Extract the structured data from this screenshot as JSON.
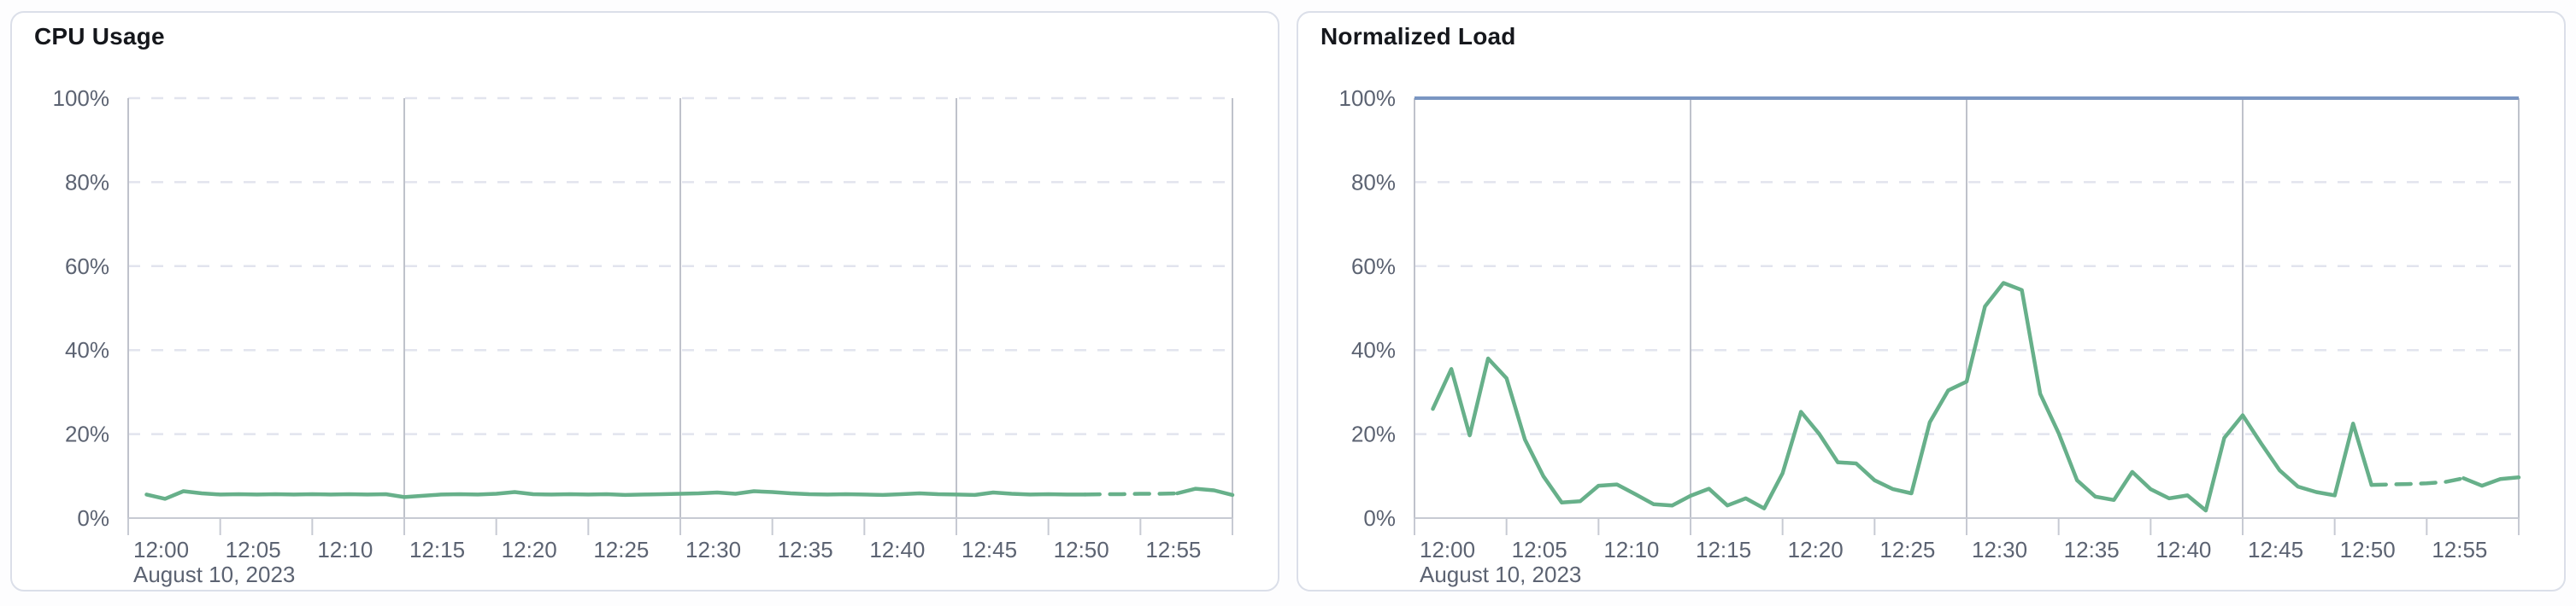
{
  "colors": {
    "card_border": "#dbdfe9",
    "card_bg": "#ffffff",
    "title_text": "#15171c",
    "label_text": "#5c6372",
    "grid_dashed": "#e2e4ee",
    "grid_solid": "#bfc2cb",
    "axis": "#c7cad3",
    "line_green": "#67b08a",
    "threshold_blue": "#7a96c2"
  },
  "chart_data": [
    {
      "type": "line",
      "title": "CPU Usage",
      "date_label": "August 10, 2023",
      "ylim": [
        0,
        100
      ],
      "x_range_minutes": [
        0,
        60
      ],
      "grid": {
        "h_dashed_levels": [
          20,
          40,
          60,
          80,
          100
        ],
        "v_solid_minutes": [
          0,
          15,
          30,
          45,
          60
        ]
      },
      "y_ticks": [
        {
          "value": 0,
          "label": "0%"
        },
        {
          "value": 20,
          "label": "20%"
        },
        {
          "value": 40,
          "label": "40%"
        },
        {
          "value": 60,
          "label": "60%"
        },
        {
          "value": 80,
          "label": "80%"
        },
        {
          "value": 100,
          "label": "100%"
        }
      ],
      "x_ticks": [
        {
          "minute": 0,
          "label": "12:00"
        },
        {
          "minute": 5,
          "label": "12:05"
        },
        {
          "minute": 10,
          "label": "12:10"
        },
        {
          "minute": 15,
          "label": "12:15"
        },
        {
          "minute": 20,
          "label": "12:20"
        },
        {
          "minute": 25,
          "label": "12:25"
        },
        {
          "minute": 30,
          "label": "12:30"
        },
        {
          "minute": 35,
          "label": "12:35"
        },
        {
          "minute": 40,
          "label": "12:40"
        },
        {
          "minute": 45,
          "label": "12:45"
        },
        {
          "minute": 50,
          "label": "12:50"
        },
        {
          "minute": 55,
          "label": "12:55"
        },
        {
          "minute": 60,
          "label": ""
        }
      ],
      "series": [
        {
          "name": "cpu-usage",
          "color_key": "line_green",
          "start_minute": 1,
          "interval_minutes": 1,
          "dashed_from_minute": 52,
          "solid_tail_from_minute": 57,
          "values": [
            5.6,
            4.6,
            6.4,
            5.9,
            5.6,
            5.7,
            5.6,
            5.7,
            5.6,
            5.7,
            5.6,
            5.7,
            5.6,
            5.7,
            5.0,
            5.3,
            5.6,
            5.7,
            5.6,
            5.8,
            6.2,
            5.7,
            5.6,
            5.7,
            5.6,
            5.7,
            5.5,
            5.6,
            5.7,
            5.8,
            5.9,
            6.1,
            5.8,
            6.4,
            6.2,
            5.9,
            5.7,
            5.6,
            5.7,
            5.6,
            5.5,
            5.7,
            5.9,
            5.7,
            5.6,
            5.5,
            6.1,
            5.8,
            5.6,
            5.7,
            5.6,
            5.6,
            5.7,
            5.7,
            5.8,
            5.8,
            5.9,
            7.0,
            6.6,
            5.5
          ]
        }
      ]
    },
    {
      "type": "line",
      "title": "Normalized Load",
      "date_label": "August 10, 2023",
      "ylim": [
        0,
        100
      ],
      "x_range_minutes": [
        0,
        60
      ],
      "grid": {
        "h_dashed_levels": [
          20,
          40,
          60,
          80
        ],
        "v_solid_minutes": [
          0,
          15,
          30,
          45,
          60
        ]
      },
      "threshold": {
        "value": 100,
        "color_key": "threshold_blue"
      },
      "y_ticks": [
        {
          "value": 0,
          "label": "0%"
        },
        {
          "value": 20,
          "label": "20%"
        },
        {
          "value": 40,
          "label": "40%"
        },
        {
          "value": 60,
          "label": "60%"
        },
        {
          "value": 80,
          "label": "80%"
        },
        {
          "value": 100,
          "label": "100%"
        }
      ],
      "x_ticks": [
        {
          "minute": 0,
          "label": "12:00"
        },
        {
          "minute": 5,
          "label": "12:05"
        },
        {
          "minute": 10,
          "label": "12:10"
        },
        {
          "minute": 15,
          "label": "12:15"
        },
        {
          "minute": 20,
          "label": "12:20"
        },
        {
          "minute": 25,
          "label": "12:25"
        },
        {
          "minute": 30,
          "label": "12:30"
        },
        {
          "minute": 35,
          "label": "12:35"
        },
        {
          "minute": 40,
          "label": "12:40"
        },
        {
          "minute": 45,
          "label": "12:45"
        },
        {
          "minute": 50,
          "label": "12:50"
        },
        {
          "minute": 55,
          "label": "12:55"
        },
        {
          "minute": 60,
          "label": ""
        }
      ],
      "series": [
        {
          "name": "normalized-load",
          "color_key": "line_green",
          "start_minute": 1,
          "interval_minutes": 1,
          "dashed_from_minute": 52,
          "solid_tail_from_minute": 57,
          "values": [
            26.0,
            35.5,
            19.7,
            38.0,
            33.3,
            18.7,
            10.0,
            3.7,
            4.0,
            7.7,
            8.0,
            5.7,
            3.3,
            3.0,
            5.3,
            7.0,
            3.0,
            4.7,
            2.3,
            10.7,
            25.3,
            20.0,
            13.3,
            13.0,
            9.0,
            6.9,
            5.9,
            22.8,
            30.4,
            32.5,
            50.4,
            56.0,
            54.3,
            29.6,
            20.2,
            9.0,
            5.1,
            4.3,
            11.0,
            6.9,
            4.7,
            5.4,
            1.8,
            19.1,
            24.5,
            17.8,
            11.4,
            7.5,
            6.2,
            5.4,
            22.5,
            7.9,
            8.0,
            8.1,
            8.3,
            8.6,
            9.5,
            7.7,
            9.3,
            9.7
          ]
        }
      ]
    }
  ]
}
